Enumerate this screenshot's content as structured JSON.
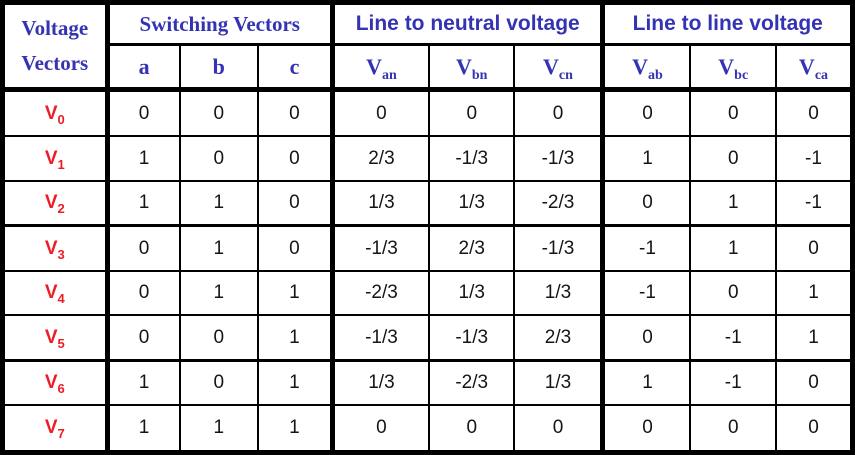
{
  "colors": {
    "header_text_blue": "#3333b3",
    "row_label_red": "#ee1c25",
    "value_text": "#151515",
    "border": "#000000",
    "background": "#ffffff"
  },
  "header": {
    "row_label_title": {
      "line1": "Voltage",
      "line2": "Vectors"
    },
    "groups": [
      {
        "label": "Switching Vectors",
        "columns": [
          {
            "base": "a",
            "sub": ""
          },
          {
            "base": "b",
            "sub": ""
          },
          {
            "base": "c",
            "sub": ""
          }
        ]
      },
      {
        "label": "Line to neutral voltage",
        "columns": [
          {
            "base": "V",
            "sub": "an"
          },
          {
            "base": "V",
            "sub": "bn"
          },
          {
            "base": "V",
            "sub": "cn"
          }
        ]
      },
      {
        "label": "Line to line voltage",
        "columns": [
          {
            "base": "V",
            "sub": "ab"
          },
          {
            "base": "V",
            "sub": "bc"
          },
          {
            "base": "V",
            "sub": "ca"
          }
        ]
      }
    ]
  },
  "rows": [
    {
      "label": {
        "base": "V",
        "sub": "0"
      },
      "switching": [
        "0",
        "0",
        "0"
      ],
      "line_to_neutral": [
        "0",
        "0",
        "0"
      ],
      "line_to_line": [
        "0",
        "0",
        "0"
      ]
    },
    {
      "label": {
        "base": "V",
        "sub": "1"
      },
      "switching": [
        "1",
        "0",
        "0"
      ],
      "line_to_neutral": [
        "2/3",
        "-1/3",
        "-1/3"
      ],
      "line_to_line": [
        "1",
        "0",
        "-1"
      ]
    },
    {
      "label": {
        "base": "V",
        "sub": "2"
      },
      "switching": [
        "1",
        "1",
        "0"
      ],
      "line_to_neutral": [
        "1/3",
        "1/3",
        "-2/3"
      ],
      "line_to_line": [
        "0",
        "1",
        "-1"
      ]
    },
    {
      "label": {
        "base": "V",
        "sub": "3"
      },
      "switching": [
        "0",
        "1",
        "0"
      ],
      "line_to_neutral": [
        "-1/3",
        "2/3",
        "-1/3"
      ],
      "line_to_line": [
        "-1",
        "1",
        "0"
      ]
    },
    {
      "label": {
        "base": "V",
        "sub": "4"
      },
      "switching": [
        "0",
        "1",
        "1"
      ],
      "line_to_neutral": [
        "-2/3",
        "1/3",
        "1/3"
      ],
      "line_to_line": [
        "-1",
        "0",
        "1"
      ]
    },
    {
      "label": {
        "base": "V",
        "sub": "5"
      },
      "switching": [
        "0",
        "0",
        "1"
      ],
      "line_to_neutral": [
        "-1/3",
        "-1/3",
        "2/3"
      ],
      "line_to_line": [
        "0",
        "-1",
        "1"
      ]
    },
    {
      "label": {
        "base": "V",
        "sub": "6"
      },
      "switching": [
        "1",
        "0",
        "1"
      ],
      "line_to_neutral": [
        "1/3",
        "-2/3",
        "1/3"
      ],
      "line_to_line": [
        "1",
        "-1",
        "0"
      ]
    },
    {
      "label": {
        "base": "V",
        "sub": "7"
      },
      "switching": [
        "1",
        "1",
        "1"
      ],
      "line_to_neutral": [
        "0",
        "0",
        "0"
      ],
      "line_to_line": [
        "0",
        "0",
        "0"
      ]
    }
  ]
}
